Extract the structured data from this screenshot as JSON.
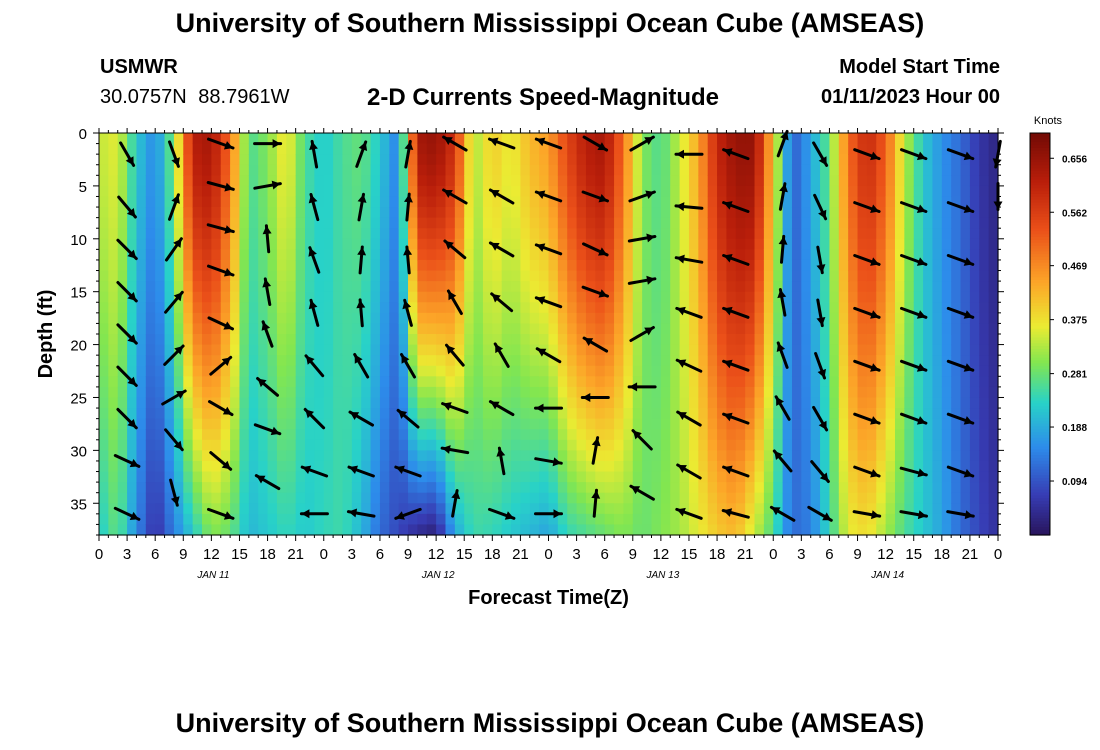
{
  "header": {
    "title": "University of Southern Mississippi Ocean Cube (AMSEAS)",
    "station_id": "USMWR",
    "coordinates": "30.0757N  88.7961W",
    "subtitle": "2-D Currents Speed-Magnitude",
    "model_start_label": "Model Start Time",
    "model_start_value": "01/11/2023 Hour 00"
  },
  "footer": {
    "title": "University of Southern Mississippi Ocean Cube (AMSEAS)"
  },
  "chart_data": {
    "type": "heatmap",
    "title": "2-D Currents Speed-Magnitude",
    "xlabel": "Forecast Time(Z)",
    "ylabel": "Depth (ft)",
    "xlim_hours": [
      0,
      96
    ],
    "ylim_ft": [
      0,
      38
    ],
    "y_ticks": [
      0,
      5,
      10,
      15,
      20,
      25,
      30,
      35
    ],
    "x_tick_labels": [
      "0",
      "3",
      "6",
      "9",
      "12",
      "15",
      "18",
      "21",
      "0",
      "3",
      "6",
      "9",
      "12",
      "15",
      "18",
      "21",
      "0",
      "3",
      "6",
      "9",
      "12",
      "15",
      "18",
      "21",
      "0",
      "3",
      "6",
      "9",
      "12",
      "15",
      "18",
      "21",
      "0"
    ],
    "day_labels": [
      {
        "label": "JAN 11",
        "hour": 12
      },
      {
        "label": "JAN 12",
        "hour": 36
      },
      {
        "label": "JAN 13",
        "hour": 60
      },
      {
        "label": "JAN 14",
        "hour": 84
      }
    ],
    "colorbar": {
      "unit": "Knots",
      "min": 0.0,
      "max": 0.7,
      "ticks": [
        0.656,
        0.562,
        0.469,
        0.375,
        0.281,
        0.188,
        0.094
      ],
      "tick_labels": [
        "0.656",
        "0.562",
        "0.469",
        "0.375",
        "0.281",
        "0.188",
        "0.094"
      ]
    },
    "speed_profiles": [
      {
        "hour": 0,
        "surface": 0.34,
        "bottom": 0.22
      },
      {
        "hour": 2,
        "surface": 0.36,
        "bottom": 0.28
      },
      {
        "hour": 4,
        "surface": 0.22,
        "bottom": 0.15
      },
      {
        "hour": 6,
        "surface": 0.15,
        "bottom": 0.05
      },
      {
        "hour": 8,
        "surface": 0.3,
        "bottom": 0.14
      },
      {
        "hour": 10,
        "surface": 0.62,
        "bottom": 0.22
      },
      {
        "hour": 12,
        "surface": 0.64,
        "bottom": 0.3
      },
      {
        "hour": 14,
        "surface": 0.5,
        "bottom": 0.28
      },
      {
        "hour": 16,
        "surface": 0.26,
        "bottom": 0.2
      },
      {
        "hour": 18,
        "surface": 0.3,
        "bottom": 0.22
      },
      {
        "hour": 20,
        "surface": 0.38,
        "bottom": 0.24
      },
      {
        "hour": 22,
        "surface": 0.26,
        "bottom": 0.22
      },
      {
        "hour": 24,
        "surface": 0.22,
        "bottom": 0.24
      },
      {
        "hour": 26,
        "surface": 0.26,
        "bottom": 0.25
      },
      {
        "hour": 28,
        "surface": 0.28,
        "bottom": 0.2
      },
      {
        "hour": 30,
        "surface": 0.22,
        "bottom": 0.12
      },
      {
        "hour": 32,
        "surface": 0.14,
        "bottom": 0.08
      },
      {
        "hour": 34,
        "surface": 0.64,
        "bottom": 0.04
      },
      {
        "hour": 36,
        "surface": 0.66,
        "bottom": 0.02
      },
      {
        "hour": 38,
        "surface": 0.58,
        "bottom": 0.18
      },
      {
        "hour": 40,
        "surface": 0.32,
        "bottom": 0.25
      },
      {
        "hour": 42,
        "surface": 0.4,
        "bottom": 0.24
      },
      {
        "hour": 44,
        "surface": 0.36,
        "bottom": 0.22
      },
      {
        "hour": 46,
        "surface": 0.42,
        "bottom": 0.2
      },
      {
        "hour": 48,
        "surface": 0.45,
        "bottom": 0.18
      },
      {
        "hour": 50,
        "surface": 0.55,
        "bottom": 0.24
      },
      {
        "hour": 52,
        "surface": 0.62,
        "bottom": 0.26
      },
      {
        "hour": 54,
        "surface": 0.64,
        "bottom": 0.28
      },
      {
        "hour": 56,
        "surface": 0.5,
        "bottom": 0.3
      },
      {
        "hour": 58,
        "surface": 0.3,
        "bottom": 0.28
      },
      {
        "hour": 60,
        "surface": 0.26,
        "bottom": 0.3
      },
      {
        "hour": 62,
        "surface": 0.34,
        "bottom": 0.32
      },
      {
        "hour": 64,
        "surface": 0.44,
        "bottom": 0.36
      },
      {
        "hour": 66,
        "surface": 0.6,
        "bottom": 0.4
      },
      {
        "hour": 68,
        "surface": 0.66,
        "bottom": 0.42
      },
      {
        "hour": 70,
        "surface": 0.66,
        "bottom": 0.34
      },
      {
        "hour": 72,
        "surface": 0.4,
        "bottom": 0.26
      },
      {
        "hour": 74,
        "surface": 0.1,
        "bottom": 0.12
      },
      {
        "hour": 76,
        "surface": 0.18,
        "bottom": 0.14
      },
      {
        "hour": 78,
        "surface": 0.28,
        "bottom": 0.24
      },
      {
        "hour": 80,
        "surface": 0.5,
        "bottom": 0.36
      },
      {
        "hour": 82,
        "surface": 0.6,
        "bottom": 0.38
      },
      {
        "hour": 84,
        "surface": 0.52,
        "bottom": 0.32
      },
      {
        "hour": 86,
        "surface": 0.34,
        "bottom": 0.26
      },
      {
        "hour": 88,
        "surface": 0.22,
        "bottom": 0.22
      },
      {
        "hour": 90,
        "surface": 0.16,
        "bottom": 0.18
      },
      {
        "hour": 92,
        "surface": 0.12,
        "bottom": 0.12
      },
      {
        "hour": 94,
        "surface": 0.06,
        "bottom": 0.08
      },
      {
        "hour": 96,
        "surface": 0.03,
        "bottom": 0.05
      }
    ],
    "vectors": [
      {
        "hour": 3,
        "depth": 2,
        "dir": 150
      },
      {
        "hour": 3,
        "depth": 7,
        "dir": 140
      },
      {
        "hour": 3,
        "depth": 11,
        "dir": 135
      },
      {
        "hour": 3,
        "depth": 15,
        "dir": 135
      },
      {
        "hour": 3,
        "depth": 19,
        "dir": 135
      },
      {
        "hour": 3,
        "depth": 23,
        "dir": 135
      },
      {
        "hour": 3,
        "depth": 27,
        "dir": 135
      },
      {
        "hour": 3,
        "depth": 31,
        "dir": 115
      },
      {
        "hour": 3,
        "depth": 36,
        "dir": 115
      },
      {
        "hour": 8,
        "depth": 2,
        "dir": 160
      },
      {
        "hour": 8,
        "depth": 7,
        "dir": 20
      },
      {
        "hour": 8,
        "depth": 11,
        "dir": 35
      },
      {
        "hour": 8,
        "depth": 16,
        "dir": 40
      },
      {
        "hour": 8,
        "depth": 21,
        "dir": 45
      },
      {
        "hour": 8,
        "depth": 25,
        "dir": 60
      },
      {
        "hour": 8,
        "depth": 29,
        "dir": 140
      },
      {
        "hour": 8,
        "depth": 34,
        "dir": 165
      },
      {
        "hour": 13,
        "depth": 1,
        "dir": 110
      },
      {
        "hour": 13,
        "depth": 5,
        "dir": 105
      },
      {
        "hour": 13,
        "depth": 9,
        "dir": 105
      },
      {
        "hour": 13,
        "depth": 13,
        "dir": 110
      },
      {
        "hour": 13,
        "depth": 18,
        "dir": 115
      },
      {
        "hour": 13,
        "depth": 22,
        "dir": 50
      },
      {
        "hour": 13,
        "depth": 26,
        "dir": 120
      },
      {
        "hour": 13,
        "depth": 31,
        "dir": 130
      },
      {
        "hour": 13,
        "depth": 36,
        "dir": 110
      },
      {
        "hour": 18,
        "depth": 1,
        "dir": 90
      },
      {
        "hour": 18,
        "depth": 5,
        "dir": 80
      },
      {
        "hour": 18,
        "depth": 10,
        "dir": 355
      },
      {
        "hour": 18,
        "depth": 15,
        "dir": 350
      },
      {
        "hour": 18,
        "depth": 19,
        "dir": 340
      },
      {
        "hour": 18,
        "depth": 24,
        "dir": 310
      },
      {
        "hour": 18,
        "depth": 28,
        "dir": 110
      },
      {
        "hour": 18,
        "depth": 33,
        "dir": 300
      },
      {
        "hour": 23,
        "depth": 2,
        "dir": 350
      },
      {
        "hour": 23,
        "depth": 7,
        "dir": 345
      },
      {
        "hour": 23,
        "depth": 12,
        "dir": 340
      },
      {
        "hour": 23,
        "depth": 17,
        "dir": 345
      },
      {
        "hour": 23,
        "depth": 22,
        "dir": 320
      },
      {
        "hour": 23,
        "depth": 27,
        "dir": 315
      },
      {
        "hour": 23,
        "depth": 32,
        "dir": 290
      },
      {
        "hour": 23,
        "depth": 36,
        "dir": 270
      },
      {
        "hour": 28,
        "depth": 2,
        "dir": 20
      },
      {
        "hour": 28,
        "depth": 7,
        "dir": 10
      },
      {
        "hour": 28,
        "depth": 12,
        "dir": 5
      },
      {
        "hour": 28,
        "depth": 17,
        "dir": 355
      },
      {
        "hour": 28,
        "depth": 22,
        "dir": 330
      },
      {
        "hour": 28,
        "depth": 27,
        "dir": 300
      },
      {
        "hour": 28,
        "depth": 32,
        "dir": 290
      },
      {
        "hour": 28,
        "depth": 36,
        "dir": 280
      },
      {
        "hour": 33,
        "depth": 2,
        "dir": 10
      },
      {
        "hour": 33,
        "depth": 7,
        "dir": 5
      },
      {
        "hour": 33,
        "depth": 12,
        "dir": 355
      },
      {
        "hour": 33,
        "depth": 17,
        "dir": 345
      },
      {
        "hour": 33,
        "depth": 22,
        "dir": 330
      },
      {
        "hour": 33,
        "depth": 27,
        "dir": 310
      },
      {
        "hour": 33,
        "depth": 32,
        "dir": 290
      },
      {
        "hour": 33,
        "depth": 36,
        "dir": 250
      },
      {
        "hour": 38,
        "depth": 1,
        "dir": 300
      },
      {
        "hour": 38,
        "depth": 6,
        "dir": 300
      },
      {
        "hour": 38,
        "depth": 11,
        "dir": 310
      },
      {
        "hour": 38,
        "depth": 16,
        "dir": 330
      },
      {
        "hour": 38,
        "depth": 21,
        "dir": 320
      },
      {
        "hour": 38,
        "depth": 26,
        "dir": 290
      },
      {
        "hour": 38,
        "depth": 30,
        "dir": 280
      },
      {
        "hour": 38,
        "depth": 35,
        "dir": 10
      },
      {
        "hour": 43,
        "depth": 1,
        "dir": 290
      },
      {
        "hour": 43,
        "depth": 6,
        "dir": 300
      },
      {
        "hour": 43,
        "depth": 11,
        "dir": 300
      },
      {
        "hour": 43,
        "depth": 16,
        "dir": 310
      },
      {
        "hour": 43,
        "depth": 21,
        "dir": 330
      },
      {
        "hour": 43,
        "depth": 26,
        "dir": 300
      },
      {
        "hour": 43,
        "depth": 31,
        "dir": 350
      },
      {
        "hour": 43,
        "depth": 36,
        "dir": 110
      },
      {
        "hour": 48,
        "depth": 1,
        "dir": 290
      },
      {
        "hour": 48,
        "depth": 6,
        "dir": 290
      },
      {
        "hour": 48,
        "depth": 11,
        "dir": 290
      },
      {
        "hour": 48,
        "depth": 16,
        "dir": 290
      },
      {
        "hour": 48,
        "depth": 21,
        "dir": 300
      },
      {
        "hour": 48,
        "depth": 26,
        "dir": 270
      },
      {
        "hour": 48,
        "depth": 31,
        "dir": 100
      },
      {
        "hour": 48,
        "depth": 36,
        "dir": 90
      },
      {
        "hour": 53,
        "depth": 1,
        "dir": 120
      },
      {
        "hour": 53,
        "depth": 6,
        "dir": 110
      },
      {
        "hour": 53,
        "depth": 11,
        "dir": 115
      },
      {
        "hour": 53,
        "depth": 15,
        "dir": 110
      },
      {
        "hour": 53,
        "depth": 20,
        "dir": 300
      },
      {
        "hour": 53,
        "depth": 25,
        "dir": 270
      },
      {
        "hour": 53,
        "depth": 30,
        "dir": 10
      },
      {
        "hour": 53,
        "depth": 35,
        "dir": 5
      },
      {
        "hour": 58,
        "depth": 1,
        "dir": 60
      },
      {
        "hour": 58,
        "depth": 6,
        "dir": 70
      },
      {
        "hour": 58,
        "depth": 10,
        "dir": 80
      },
      {
        "hour": 58,
        "depth": 14,
        "dir": 80
      },
      {
        "hour": 58,
        "depth": 19,
        "dir": 60
      },
      {
        "hour": 58,
        "depth": 24,
        "dir": 270
      },
      {
        "hour": 58,
        "depth": 29,
        "dir": 315
      },
      {
        "hour": 58,
        "depth": 34,
        "dir": 300
      },
      {
        "hour": 63,
        "depth": 2,
        "dir": 270
      },
      {
        "hour": 63,
        "depth": 7,
        "dir": 275
      },
      {
        "hour": 63,
        "depth": 12,
        "dir": 280
      },
      {
        "hour": 63,
        "depth": 17,
        "dir": 290
      },
      {
        "hour": 63,
        "depth": 22,
        "dir": 295
      },
      {
        "hour": 63,
        "depth": 27,
        "dir": 300
      },
      {
        "hour": 63,
        "depth": 32,
        "dir": 300
      },
      {
        "hour": 63,
        "depth": 36,
        "dir": 290
      },
      {
        "hour": 68,
        "depth": 2,
        "dir": 290
      },
      {
        "hour": 68,
        "depth": 7,
        "dir": 290
      },
      {
        "hour": 68,
        "depth": 12,
        "dir": 290
      },
      {
        "hour": 68,
        "depth": 17,
        "dir": 290
      },
      {
        "hour": 68,
        "depth": 22,
        "dir": 290
      },
      {
        "hour": 68,
        "depth": 27,
        "dir": 290
      },
      {
        "hour": 68,
        "depth": 32,
        "dir": 290
      },
      {
        "hour": 68,
        "depth": 36,
        "dir": 285
      },
      {
        "hour": 73,
        "depth": 1,
        "dir": 20
      },
      {
        "hour": 73,
        "depth": 6,
        "dir": 10
      },
      {
        "hour": 73,
        "depth": 11,
        "dir": 5
      },
      {
        "hour": 73,
        "depth": 16,
        "dir": 350
      },
      {
        "hour": 73,
        "depth": 21,
        "dir": 340
      },
      {
        "hour": 73,
        "depth": 26,
        "dir": 330
      },
      {
        "hour": 73,
        "depth": 31,
        "dir": 320
      },
      {
        "hour": 73,
        "depth": 36,
        "dir": 300
      },
      {
        "hour": 77,
        "depth": 2,
        "dir": 150
      },
      {
        "hour": 77,
        "depth": 7,
        "dir": 155
      },
      {
        "hour": 77,
        "depth": 12,
        "dir": 170
      },
      {
        "hour": 77,
        "depth": 17,
        "dir": 170
      },
      {
        "hour": 77,
        "depth": 22,
        "dir": 160
      },
      {
        "hour": 77,
        "depth": 27,
        "dir": 150
      },
      {
        "hour": 77,
        "depth": 32,
        "dir": 140
      },
      {
        "hour": 77,
        "depth": 36,
        "dir": 120
      },
      {
        "hour": 82,
        "depth": 2,
        "dir": 110
      },
      {
        "hour": 82,
        "depth": 7,
        "dir": 110
      },
      {
        "hour": 82,
        "depth": 12,
        "dir": 110
      },
      {
        "hour": 82,
        "depth": 17,
        "dir": 110
      },
      {
        "hour": 82,
        "depth": 22,
        "dir": 110
      },
      {
        "hour": 82,
        "depth": 27,
        "dir": 110
      },
      {
        "hour": 82,
        "depth": 32,
        "dir": 110
      },
      {
        "hour": 82,
        "depth": 36,
        "dir": 100
      },
      {
        "hour": 87,
        "depth": 2,
        "dir": 110
      },
      {
        "hour": 87,
        "depth": 7,
        "dir": 110
      },
      {
        "hour": 87,
        "depth": 12,
        "dir": 110
      },
      {
        "hour": 87,
        "depth": 17,
        "dir": 110
      },
      {
        "hour": 87,
        "depth": 22,
        "dir": 110
      },
      {
        "hour": 87,
        "depth": 27,
        "dir": 110
      },
      {
        "hour": 87,
        "depth": 32,
        "dir": 105
      },
      {
        "hour": 87,
        "depth": 36,
        "dir": 100
      },
      {
        "hour": 92,
        "depth": 2,
        "dir": 110
      },
      {
        "hour": 92,
        "depth": 7,
        "dir": 110
      },
      {
        "hour": 92,
        "depth": 12,
        "dir": 110
      },
      {
        "hour": 92,
        "depth": 17,
        "dir": 110
      },
      {
        "hour": 92,
        "depth": 22,
        "dir": 110
      },
      {
        "hour": 92,
        "depth": 27,
        "dir": 110
      },
      {
        "hour": 92,
        "depth": 32,
        "dir": 110
      },
      {
        "hour": 92,
        "depth": 36,
        "dir": 100
      },
      {
        "hour": 96,
        "depth": 2,
        "dir": 190
      },
      {
        "hour": 96,
        "depth": 6,
        "dir": 180
      }
    ]
  }
}
